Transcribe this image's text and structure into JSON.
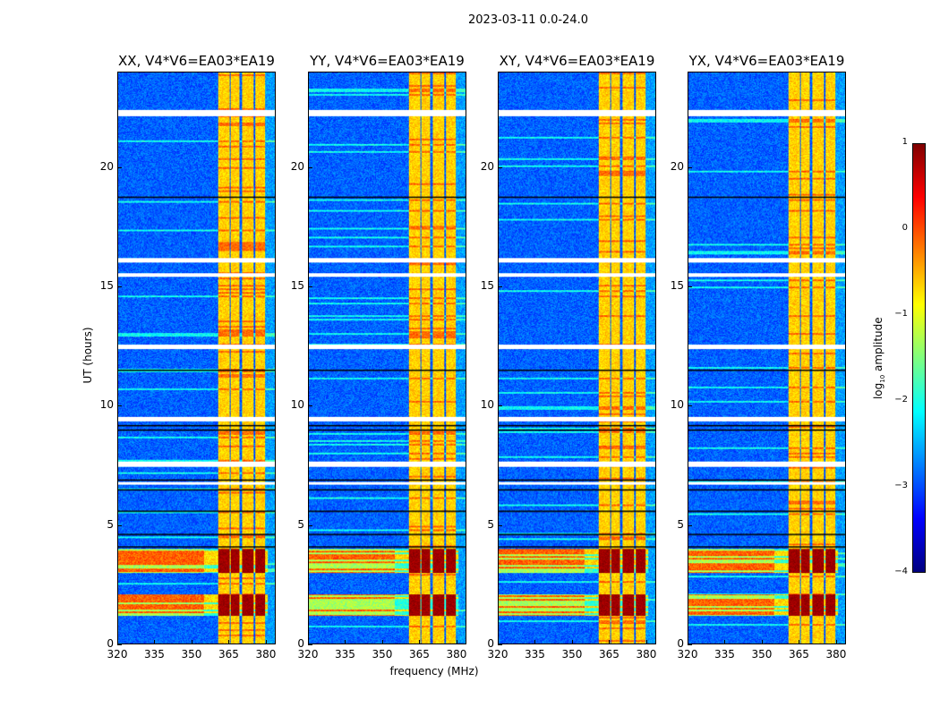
{
  "chart_data": {
    "type": "heatmap",
    "suptitle": "2023-03-11 0.0-24.0",
    "xlabel": "frequency (MHz)",
    "ylabel": "UT (hours)",
    "xlim": [
      320,
      384
    ],
    "ylim": [
      0,
      24
    ],
    "xticks": [
      "320",
      "335",
      "350",
      "365",
      "380"
    ],
    "yticks": [
      "0",
      "5",
      "10",
      "15",
      "20"
    ],
    "panels": [
      {
        "title": "XX, V4*V6=EA03*EA19"
      },
      {
        "title": "YY, V4*V6=EA03*EA19"
      },
      {
        "title": "XY, V4*V6=EA03*EA19"
      },
      {
        "title": "YX, V4*V6=EA03*EA19"
      }
    ],
    "colorbar": {
      "label": "log10 amplitude",
      "label_main": "log",
      "label_sub": "10",
      "label_rest": " amplitude",
      "range": [
        -4,
        1
      ],
      "ticks": [
        "1",
        "0",
        "−1",
        "−2",
        "−3",
        "−4"
      ],
      "colormap": "jet"
    },
    "rfi_channels_mhz": [
      [
        360.5,
        365.2
      ],
      [
        365.9,
        369.5
      ],
      [
        370.3,
        375
      ],
      [
        375.7,
        379.7
      ]
    ],
    "strong_rfi_hours": [
      [
        1.2,
        2.1
      ],
      [
        3.0,
        4.0
      ]
    ],
    "flagged_hours": [
      [
        22.2,
        22.45
      ],
      [
        16.05,
        16.2
      ],
      [
        15.45,
        15.6
      ],
      [
        12.4,
        12.6
      ],
      [
        9.35,
        9.55
      ],
      [
        7.45,
        7.65
      ],
      [
        6.7,
        6.8
      ]
    ],
    "dropout_hours": [
      18.8,
      11.5,
      9.2,
      9.0,
      6.9,
      6.5,
      5.6,
      4.6,
      4.1
    ]
  }
}
